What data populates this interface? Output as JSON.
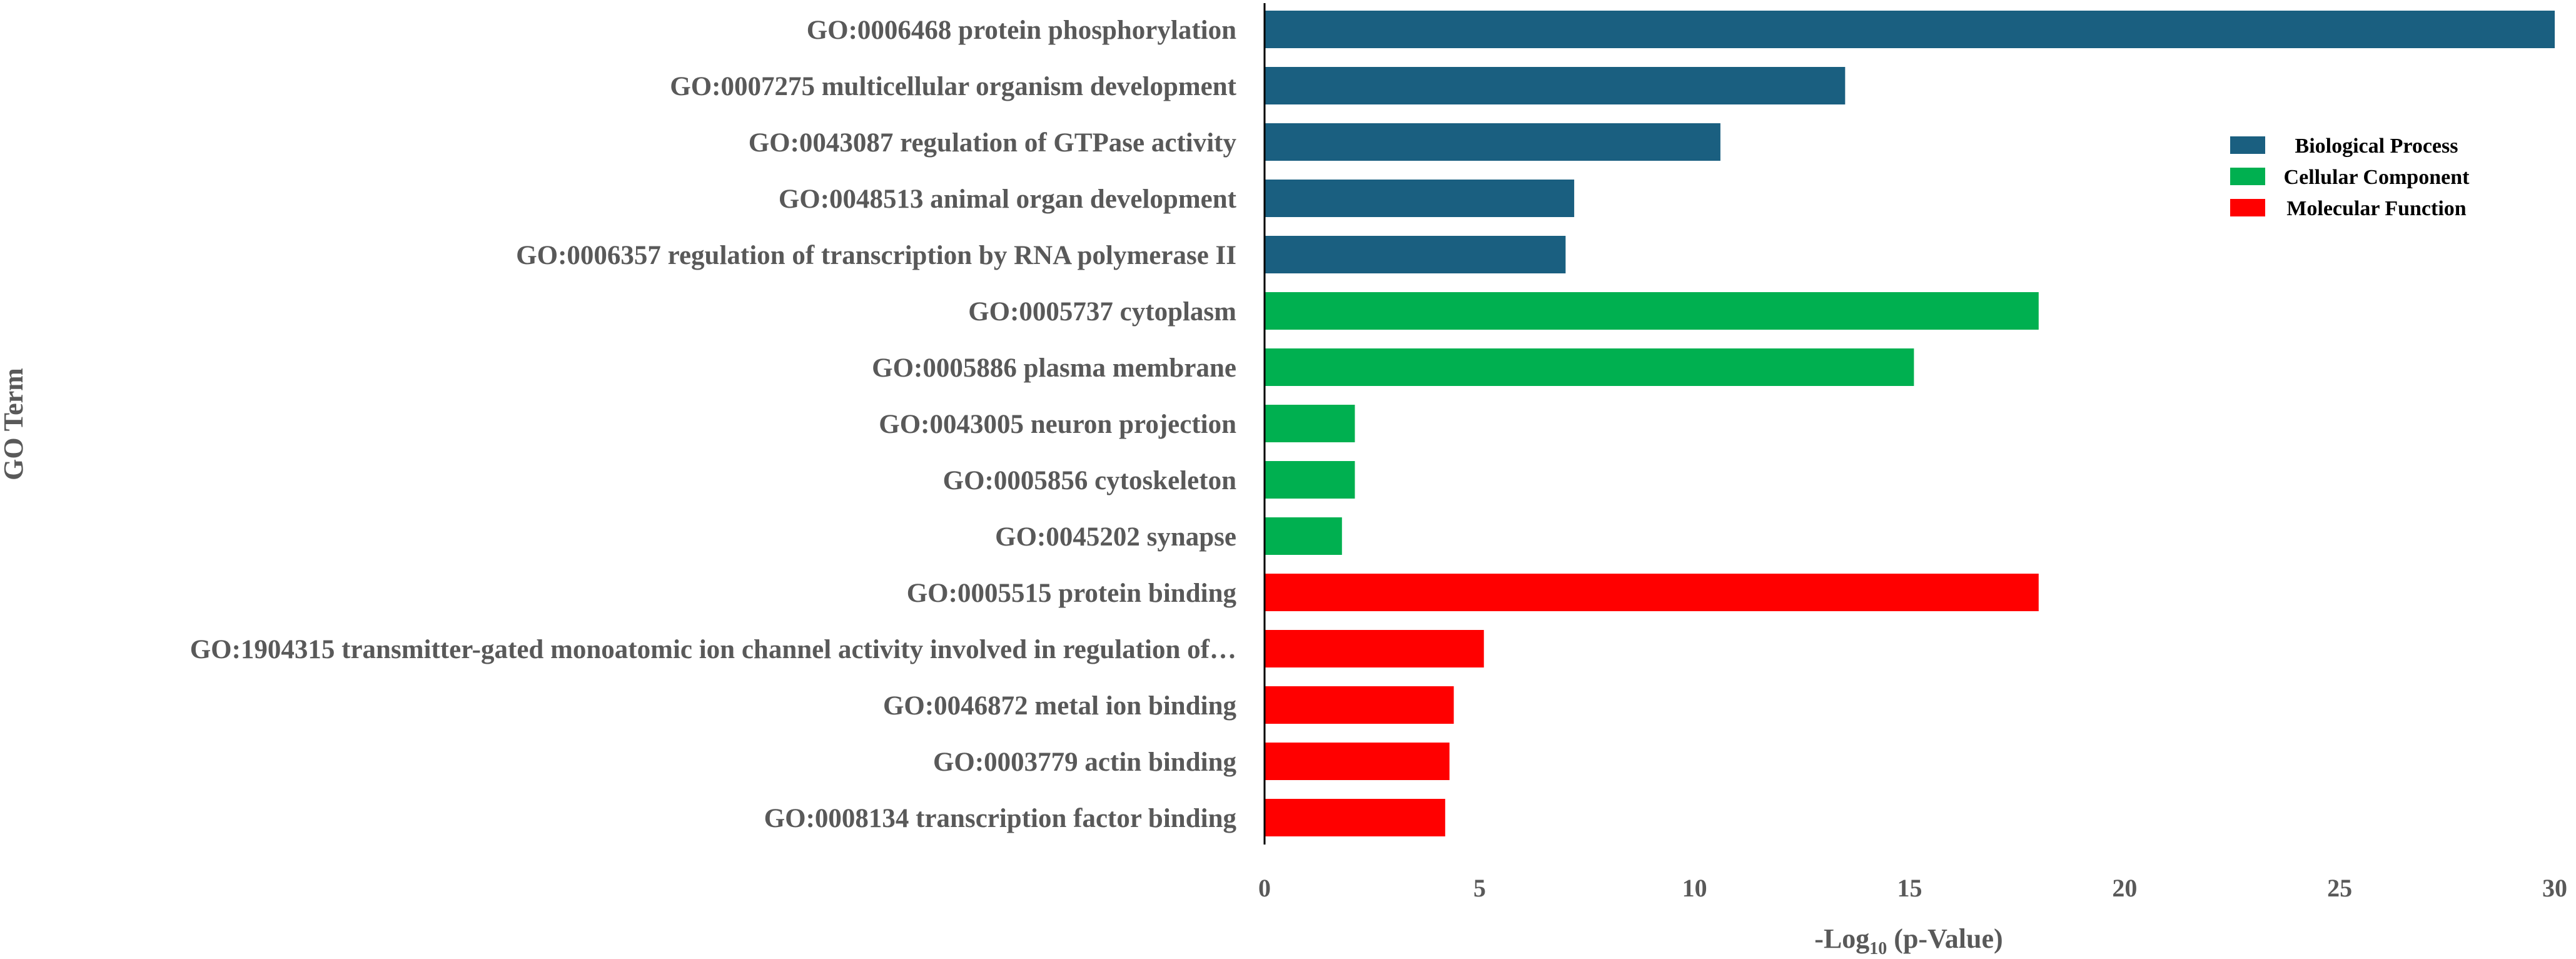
{
  "chart_data": {
    "type": "bar",
    "orientation": "horizontal",
    "ylabel": "GO Term",
    "xlabel_main": "-Log",
    "xlabel_sub": "10",
    "xlabel_rest": " (p-Value)",
    "xlim": [
      0,
      30
    ],
    "xticks": [
      "0",
      "5",
      "10",
      "15",
      "20",
      "25",
      "30"
    ],
    "grid": false,
    "legend_position": "top-right",
    "legend": [
      {
        "name": "Biological Process",
        "color": "#1a5f80"
      },
      {
        "name": "Cellular Component",
        "color": "#00b050"
      },
      {
        "name": "Molecular Function",
        "color": "#ff0000"
      }
    ],
    "categories": [
      "GO:0006468 protein phosphorylation",
      "GO:0007275 multicellular organism development",
      "GO:0043087 regulation of GTPase activity",
      "GO:0048513 animal organ development",
      "GO:0006357 regulation of transcription by RNA polymerase II",
      "GO:0005737 cytoplasm",
      "GO:0005886 plasma membrane",
      "GO:0043005 neuron projection",
      "GO:0005856 cytoskeleton",
      "GO:0045202 synapse",
      "GO:0005515 protein binding",
      "GO:1904315 transmitter-gated monoatomic ion channel activity involved in regulation of…",
      "GO:0046872 metal ion binding",
      "GO:0003779 actin binding",
      "GO:0008134 transcription factor binding"
    ],
    "values": [
      30,
      13.5,
      10.6,
      7.2,
      7.0,
      18.0,
      15.1,
      2.1,
      2.1,
      1.8,
      18.0,
      5.1,
      4.4,
      4.3,
      4.2
    ],
    "groups": [
      0,
      0,
      0,
      0,
      0,
      1,
      1,
      1,
      1,
      1,
      2,
      2,
      2,
      2,
      2
    ]
  }
}
